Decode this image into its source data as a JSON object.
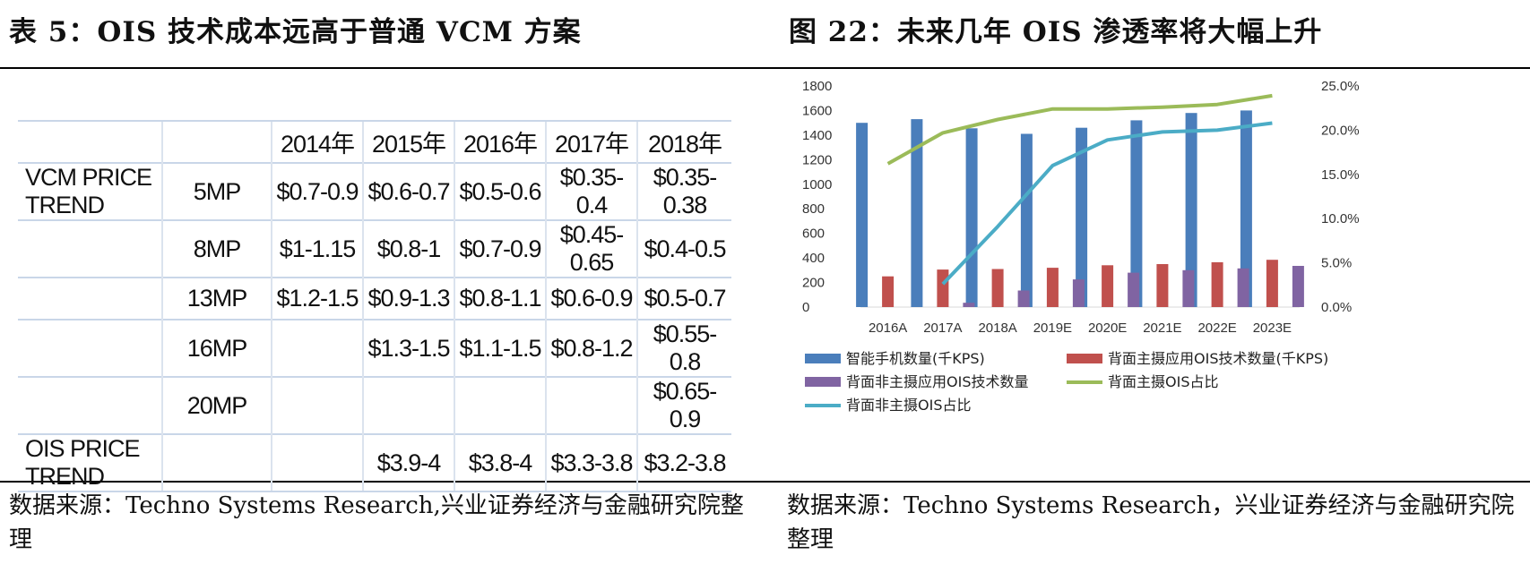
{
  "left_panel": {
    "title": "表 5：OIS 技术成本远高于普通 VCM 方案",
    "source": "数据来源：Techno Systems Research,兴业证券经济与金融研究院整理",
    "table": {
      "header": [
        "",
        "",
        "2014年",
        "2015年",
        "2016年",
        "2017年",
        "2018年"
      ],
      "rows": [
        [
          "VCM PRICE TREND",
          "5MP",
          "$0.7-0.9",
          "$0.6-0.7",
          "$0.5-0.6",
          "$0.35-0.4",
          "$0.35-0.38"
        ],
        [
          "",
          "8MP",
          "$1-1.15",
          "$0.8-1",
          "$0.7-0.9",
          "$0.45-0.65",
          "$0.4-0.5"
        ],
        [
          "",
          "13MP",
          "$1.2-1.5",
          "$0.9-1.3",
          "$0.8-1.1",
          "$0.6-0.9",
          "$0.5-0.7"
        ],
        [
          "",
          "16MP",
          "",
          "$1.3-1.5",
          "$1.1-1.5",
          "$0.8-1.2",
          "$0.55-0.8"
        ],
        [
          "",
          "20MP",
          "",
          "",
          "",
          "",
          "$0.65-0.9"
        ],
        [
          "OIS PRICE TREND",
          "",
          "",
          "$3.9-4",
          "$3.8-4",
          "$3.3-3.8",
          "$3.2-3.8"
        ]
      ]
    }
  },
  "right_panel": {
    "title": "图 22：未来几年 OIS 渗透率将大幅上升",
    "source": "数据来源：Techno Systems Research，兴业证券经济与金融研究院整理"
  },
  "chart_data": {
    "type": "bar",
    "categories": [
      "2016A",
      "2017A",
      "2018A",
      "2019E",
      "2020E",
      "2021E",
      "2022E",
      "2023E"
    ],
    "y_ticks": [
      "0",
      "200",
      "400",
      "600",
      "800",
      "1000",
      "1200",
      "1400",
      "1600",
      "1800"
    ],
    "y2_ticks": [
      "0.0%",
      "5.0%",
      "10.0%",
      "15.0%",
      "20.0%",
      "25.0%"
    ],
    "ylim": [
      0,
      1800
    ],
    "y2lim": [
      0,
      25
    ],
    "series": [
      {
        "name": "智能手机数量(千KPS)",
        "kind": "bar",
        "axis": "left",
        "color": "#4a7ebb",
        "values": [
          1500,
          1530,
          1455,
          1410,
          1460,
          1520,
          1580,
          1600
        ]
      },
      {
        "name": "背面主摄应用OIS技术数量(千KPS)",
        "kind": "bar",
        "axis": "left",
        "color": "#c0504d",
        "values": [
          250,
          305,
          310,
          320,
          340,
          350,
          365,
          385
        ]
      },
      {
        "name": "背面非主摄应用OIS技术数量",
        "kind": "bar",
        "axis": "left",
        "color": "#8064a2",
        "values": [
          null,
          35,
          135,
          225,
          280,
          300,
          315,
          335
        ]
      },
      {
        "name": "背面主摄OIS占比",
        "kind": "line",
        "axis": "right",
        "color": "#9bbb59",
        "values": [
          16.2,
          19.7,
          21.2,
          22.4,
          22.4,
          22.6,
          22.9,
          23.9
        ]
      },
      {
        "name": "背面非主摄OIS占比",
        "kind": "line",
        "axis": "right",
        "color": "#4bacc6",
        "values": [
          null,
          2.6,
          9.1,
          16.0,
          18.9,
          19.8,
          20.0,
          20.8
        ]
      }
    ],
    "grid": false,
    "legend": "bottom"
  }
}
